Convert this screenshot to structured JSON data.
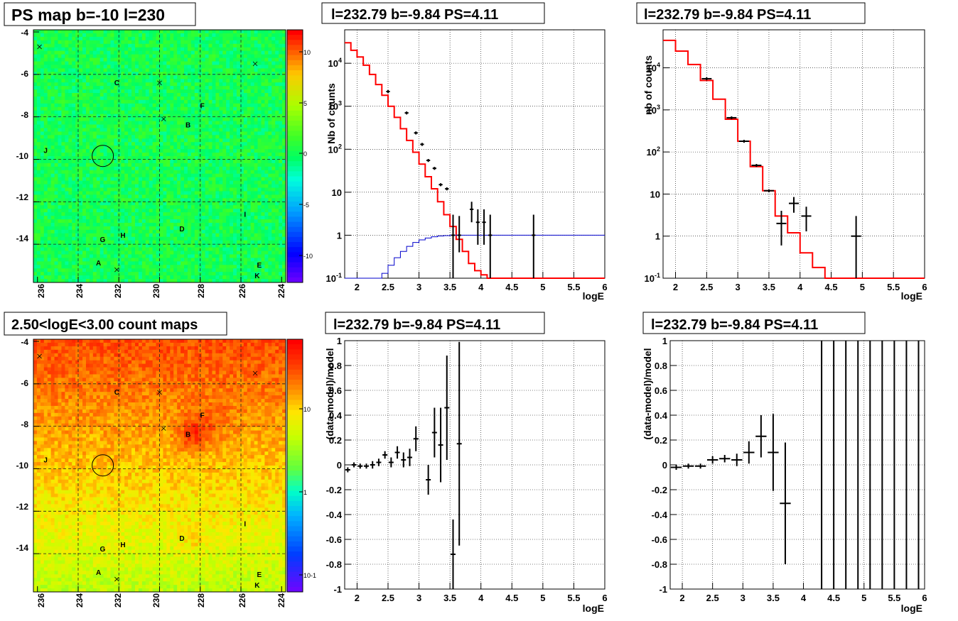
{
  "panels": {
    "map_top": {
      "title": "PS map b=-10 l=230",
      "x_ticks": [
        "236",
        "234",
        "232",
        "230",
        "228",
        "226",
        "224"
      ],
      "y_ticks": [
        "-4",
        "-6",
        "-8",
        "-10",
        "-12",
        "-14"
      ],
      "colorbar_ticks": [
        "10",
        "5",
        "0",
        "-5",
        "-10"
      ],
      "labels": [
        "C",
        "F",
        "B",
        "J",
        "I",
        "D",
        "G",
        "H",
        "A",
        "E",
        "K"
      ]
    },
    "map_bottom": {
      "title": "2.50<logE<3.00 count maps",
      "x_ticks": [
        "236",
        "234",
        "232",
        "230",
        "228",
        "226",
        "224"
      ],
      "y_ticks": [
        "-4",
        "-6",
        "-8",
        "-10",
        "-12",
        "-14"
      ],
      "colorbar_ticks": [
        "10",
        "1",
        "10-1"
      ],
      "labels": [
        "C",
        "F",
        "B",
        "J",
        "I",
        "D",
        "G",
        "H",
        "A",
        "E",
        "K"
      ]
    },
    "spec_mid": {
      "title": "l=232.79 b=-9.84 PS=4.11",
      "xlabel": "logE",
      "ylabel": "Nb of counts"
    },
    "spec_right": {
      "title": "l=232.79 b=-9.84 PS=4.11",
      "xlabel": "logE",
      "ylabel": "nb of counts"
    },
    "resid_mid": {
      "title": "l=232.79 b=-9.84 PS=4.11",
      "xlabel": "logE",
      "ylabel": "(data-model)/model"
    },
    "resid_right": {
      "title": "l=232.79 b=-9.84 PS=4.11",
      "xlabel": "logE",
      "ylabel": "(data-model)/model"
    }
  },
  "colors": {
    "model": "#ff0000",
    "secondary": "#0000cc",
    "data": "#000000"
  },
  "chart_data": [
    {
      "type": "heatmap",
      "title": "PS map b=-10 l=230",
      "xlim": [
        236.2,
        223.8
      ],
      "ylim": [
        -15.8,
        -3.9
      ],
      "colorbar_range": [
        -12,
        12
      ],
      "markers": [
        {
          "label": "C",
          "l": 232.1,
          "b": -6.5
        },
        {
          "label": "F",
          "l": 227.9,
          "b": -7.6
        },
        {
          "label": "B",
          "l": 228.6,
          "b": -8.5
        },
        {
          "label": "J",
          "l": 235.6,
          "b": -9.7
        },
        {
          "label": "I",
          "l": 225.8,
          "b": -12.7
        },
        {
          "label": "D",
          "l": 228.9,
          "b": -13.4
        },
        {
          "label": "G",
          "l": 232.8,
          "b": -13.9
        },
        {
          "label": "H",
          "l": 231.8,
          "b": -13.7
        },
        {
          "label": "A",
          "l": 233.0,
          "b": -15.0
        },
        {
          "label": "E",
          "l": 225.1,
          "b": -15.1
        },
        {
          "label": "K",
          "l": 225.2,
          "b": -15.6
        }
      ],
      "crosses": [
        {
          "l": 235.9,
          "b": -4.7
        },
        {
          "l": 230.0,
          "b": -6.4
        },
        {
          "l": 229.8,
          "b": -8.1
        },
        {
          "l": 225.3,
          "b": -5.5
        },
        {
          "l": 232.1,
          "b": -15.2
        }
      ],
      "circle": {
        "l": 232.79,
        "b": -9.84
      }
    },
    {
      "type": "heatmap",
      "title": "2.50<logE<3.00 count maps",
      "xlim": [
        236.2,
        223.8
      ],
      "ylim": [
        -15.8,
        -3.9
      ],
      "colorbar_log_range": [
        0.05,
        80
      ],
      "markers": [
        {
          "label": "C",
          "l": 232.1,
          "b": -6.5
        },
        {
          "label": "F",
          "l": 227.9,
          "b": -7.6
        },
        {
          "label": "B",
          "l": 228.6,
          "b": -8.5
        },
        {
          "label": "J",
          "l": 235.6,
          "b": -9.7
        },
        {
          "label": "I",
          "l": 225.8,
          "b": -12.7
        },
        {
          "label": "D",
          "l": 228.9,
          "b": -13.4
        },
        {
          "label": "G",
          "l": 232.8,
          "b": -13.9
        },
        {
          "label": "H",
          "l": 231.8,
          "b": -13.7
        },
        {
          "label": "A",
          "l": 233.0,
          "b": -15.0
        },
        {
          "label": "E",
          "l": 225.1,
          "b": -15.1
        },
        {
          "label": "K",
          "l": 225.2,
          "b": -15.6
        }
      ],
      "crosses": [
        {
          "l": 235.9,
          "b": -4.7
        },
        {
          "l": 230.0,
          "b": -6.4
        },
        {
          "l": 229.8,
          "b": -8.1
        },
        {
          "l": 225.3,
          "b": -5.5
        },
        {
          "l": 232.1,
          "b": -15.2
        }
      ],
      "circle": {
        "l": 232.79,
        "b": -9.84
      }
    },
    {
      "type": "line",
      "title": "l=232.79 b=-9.84 PS=4.11",
      "xlabel": "logE",
      "ylabel": "Nb of counts",
      "xlim": [
        1.8,
        6.0
      ],
      "ylim": [
        0.1,
        60000
      ],
      "log_y": true,
      "grid": true,
      "bin_width": 0.1,
      "series": [
        {
          "style": "step",
          "color": "#ff0000",
          "x": [
            1.85,
            1.95,
            2.05,
            2.15,
            2.25,
            2.35,
            2.45,
            2.55,
            2.65,
            2.75,
            2.85,
            2.95,
            3.05,
            3.15,
            3.25,
            3.35,
            3.45,
            3.55,
            3.65,
            3.75,
            3.85,
            3.95,
            4.05,
            4.15,
            4.25,
            4.35,
            4.45,
            4.55,
            4.65,
            4.75,
            4.85,
            4.95,
            5.05,
            5.15,
            5.25,
            5.35,
            5.45,
            5.55,
            5.65,
            5.75,
            5.85,
            5.95
          ],
          "y": [
            30000,
            20000,
            14000,
            9000,
            5500,
            3200,
            1800,
            1000,
            550,
            300,
            160,
            85,
            45,
            23,
            12,
            6,
            3,
            1.6,
            0.8,
            0.42,
            0.22,
            0.15,
            0.12,
            0.1,
            0.1,
            0.1,
            0.1,
            0.1,
            0.1,
            0.1,
            0.1,
            0.1,
            0.1,
            0.1,
            0.1,
            0.1,
            0.1,
            0.1,
            0.1,
            0.1,
            0.1,
            0.1
          ]
        },
        {
          "style": "step",
          "color": "#0000cc",
          "x": [
            1.85,
            1.95,
            2.05,
            2.15,
            2.25,
            2.35,
            2.45,
            2.55,
            2.65,
            2.75,
            2.85,
            2.95,
            3.05,
            3.15,
            3.25,
            3.35,
            3.45,
            3.55,
            3.65,
            3.75,
            3.85,
            3.95,
            4.05,
            4.15,
            4.25,
            4.35,
            4.45,
            4.55,
            4.65,
            4.75,
            4.85,
            4.95,
            5.05,
            5.15,
            5.25,
            5.35,
            5.45,
            5.55,
            5.65,
            5.75,
            5.85,
            5.95
          ],
          "y": [
            0.1,
            0.1,
            0.1,
            0.1,
            0.1,
            0.1,
            0.13,
            0.2,
            0.3,
            0.42,
            0.55,
            0.68,
            0.78,
            0.86,
            0.92,
            0.96,
            0.98,
            1,
            1,
            1,
            1,
            1,
            1,
            1,
            1,
            1,
            1,
            1,
            1,
            1,
            1,
            1,
            1,
            1,
            1,
            1,
            1,
            1,
            1,
            1,
            1,
            1
          ]
        },
        {
          "style": "errorbars",
          "color": "#000000",
          "points": [
            {
              "x": 2.5,
              "y": 2200
            },
            {
              "x": 2.8,
              "y": 700
            },
            {
              "x": 2.95,
              "y": 240
            },
            {
              "x": 3.05,
              "y": 130
            },
            {
              "x": 3.15,
              "y": 55
            },
            {
              "x": 3.25,
              "y": 36
            },
            {
              "x": 3.35,
              "y": 15
            },
            {
              "x": 3.45,
              "y": 12
            },
            {
              "x": 3.55,
              "y": 1,
              "lo": 0.1,
              "hi": 3
            },
            {
              "x": 3.65,
              "y": 1,
              "lo": 0.4,
              "hi": 2.8
            },
            {
              "x": 3.85,
              "y": 4,
              "lo": 2,
              "hi": 6
            },
            {
              "x": 3.95,
              "y": 2,
              "lo": 0.6,
              "hi": 4
            },
            {
              "x": 4.05,
              "y": 2,
              "lo": 0.6,
              "hi": 4
            },
            {
              "x": 4.15,
              "y": 1,
              "lo": 0.1,
              "hi": 3
            },
            {
              "x": 4.85,
              "y": 1,
              "lo": 0.1,
              "hi": 3
            }
          ]
        }
      ]
    },
    {
      "type": "line",
      "title": "l=232.79 b=-9.84 PS=4.11",
      "xlabel": "logE",
      "ylabel": "nb of counts",
      "xlim": [
        1.8,
        6.0
      ],
      "ylim": [
        0.1,
        80000
      ],
      "log_y": true,
      "grid": true,
      "bin_width": 0.2,
      "series": [
        {
          "style": "step",
          "color": "#ff0000",
          "x": [
            1.9,
            2.1,
            2.3,
            2.5,
            2.7,
            2.9,
            3.1,
            3.3,
            3.5,
            3.7,
            3.9,
            4.1,
            4.3,
            4.5,
            4.7,
            4.9,
            5.1,
            5.3,
            5.5,
            5.7,
            5.9
          ],
          "y": [
            45000,
            25000,
            12000,
            5000,
            1800,
            600,
            180,
            45,
            12,
            3,
            1.2,
            0.4,
            0.18,
            0.1,
            0.1,
            0.1,
            0.1,
            0.1,
            0.1,
            0.1,
            0.1
          ]
        },
        {
          "style": "errorbars",
          "color": "#000000",
          "points": [
            {
              "x": 2.5,
              "y": 5500
            },
            {
              "x": 2.9,
              "y": 650
            },
            {
              "x": 3.1,
              "y": 180
            },
            {
              "x": 3.3,
              "y": 48
            },
            {
              "x": 3.5,
              "y": 12
            },
            {
              "x": 3.7,
              "y": 2,
              "lo": 0.6,
              "hi": 4
            },
            {
              "x": 3.9,
              "y": 6,
              "lo": 3.6,
              "hi": 8.5
            },
            {
              "x": 4.1,
              "y": 3,
              "lo": 1.3,
              "hi": 5
            },
            {
              "x": 4.9,
              "y": 1,
              "lo": 0.1,
              "hi": 3
            }
          ]
        }
      ]
    },
    {
      "type": "scatter",
      "title": "l=232.79 b=-9.84 PS=4.11",
      "xlabel": "logE",
      "ylabel": "(data-model)/model",
      "xlim": [
        1.8,
        6.0
      ],
      "ylim": [
        -1,
        1
      ],
      "grid": true,
      "points": [
        {
          "x": 1.85,
          "y": -0.04,
          "e": 0.02
        },
        {
          "x": 1.95,
          "y": 0.0,
          "e": 0.02
        },
        {
          "x": 2.05,
          "y": -0.01,
          "e": 0.02
        },
        {
          "x": 2.15,
          "y": -0.01,
          "e": 0.02
        },
        {
          "x": 2.25,
          "y": 0.0,
          "e": 0.03
        },
        {
          "x": 2.35,
          "y": 0.02,
          "e": 0.03
        },
        {
          "x": 2.45,
          "y": 0.08,
          "e": 0.03
        },
        {
          "x": 2.55,
          "y": 0.02,
          "e": 0.04
        },
        {
          "x": 2.65,
          "y": 0.1,
          "e": 0.05
        },
        {
          "x": 2.75,
          "y": 0.04,
          "e": 0.06
        },
        {
          "x": 2.85,
          "y": 0.06,
          "e": 0.07
        },
        {
          "x": 2.95,
          "y": 0.21,
          "e": 0.1
        },
        {
          "x": 3.15,
          "y": -0.12,
          "e": 0.12
        },
        {
          "x": 3.25,
          "y": 0.26,
          "e": 0.2
        },
        {
          "x": 3.35,
          "y": 0.16,
          "e": 0.3
        },
        {
          "x": 3.45,
          "y": 0.46,
          "e": 0.42
        },
        {
          "x": 3.55,
          "y": -0.72,
          "e": 0.28
        },
        {
          "x": 3.65,
          "y": 0.17,
          "e": 0.82
        }
      ]
    },
    {
      "type": "scatter",
      "title": "l=232.79 b=-9.84 PS=4.11",
      "xlabel": "logE",
      "ylabel": "(data-model)/model",
      "xlim": [
        1.8,
        6.0
      ],
      "ylim": [
        -1,
        1
      ],
      "grid": true,
      "points": [
        {
          "x": 1.9,
          "y": -0.02,
          "e": 0.02
        },
        {
          "x": 2.1,
          "y": -0.01,
          "e": 0.02
        },
        {
          "x": 2.3,
          "y": -0.01,
          "e": 0.02
        },
        {
          "x": 2.5,
          "y": 0.04,
          "e": 0.03
        },
        {
          "x": 2.7,
          "y": 0.05,
          "e": 0.03
        },
        {
          "x": 2.9,
          "y": 0.04,
          "e": 0.05
        },
        {
          "x": 3.1,
          "y": 0.1,
          "e": 0.09
        },
        {
          "x": 3.3,
          "y": 0.23,
          "e": 0.17
        },
        {
          "x": 3.5,
          "y": 0.1,
          "e": 0.31
        },
        {
          "x": 3.7,
          "y": -0.31,
          "e": 0.49
        },
        {
          "x": 4.3,
          "y": 1,
          "e": 2
        },
        {
          "x": 4.5,
          "y": 1,
          "e": 2
        },
        {
          "x": 4.7,
          "y": 1,
          "e": 2
        },
        {
          "x": 4.9,
          "y": 1,
          "e": 2
        },
        {
          "x": 5.1,
          "y": 1,
          "e": 2
        },
        {
          "x": 5.3,
          "y": 1,
          "e": 2
        },
        {
          "x": 5.5,
          "y": 1,
          "e": 2
        },
        {
          "x": 5.7,
          "y": 1,
          "e": 2
        },
        {
          "x": 5.9,
          "y": 1,
          "e": 2
        }
      ]
    }
  ]
}
